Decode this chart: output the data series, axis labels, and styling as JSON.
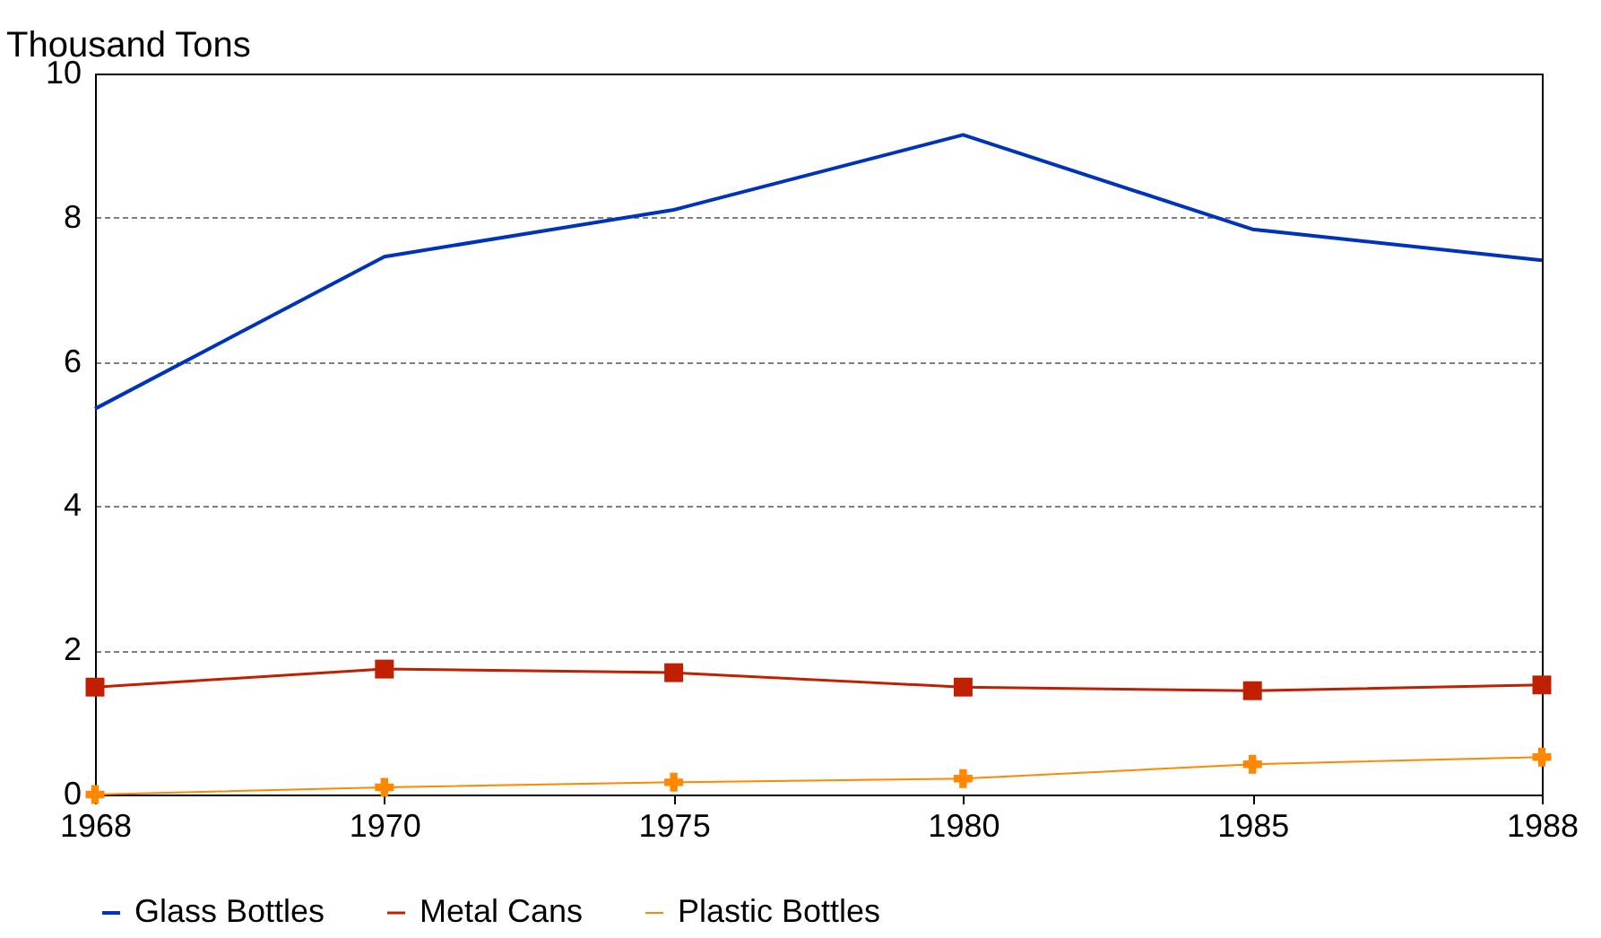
{
  "chart_data": {
    "type": "line",
    "ylabel": "Thousand Tons",
    "categories": [
      "1968",
      "1970",
      "1975",
      "1980",
      "1985",
      "1988"
    ],
    "ylim": [
      0,
      10
    ],
    "yticks": [
      0,
      2,
      4,
      6,
      8,
      10
    ],
    "grid": "y",
    "legend": "bottom",
    "series": [
      {
        "name": "Glass Bottles",
        "color": "#0033bb",
        "marker": "none",
        "values": [
          5.35,
          7.46,
          8.11,
          9.15,
          7.84,
          7.41
        ]
      },
      {
        "name": "Metal Cans",
        "color": "#c02000",
        "marker": "square",
        "values": [
          1.49,
          1.74,
          1.69,
          1.49,
          1.44,
          1.52
        ]
      },
      {
        "name": "Plastic Bottles",
        "color": "#ff8800",
        "marker": "cross",
        "values": [
          0.0,
          0.1,
          0.17,
          0.22,
          0.42,
          0.52
        ]
      }
    ]
  }
}
